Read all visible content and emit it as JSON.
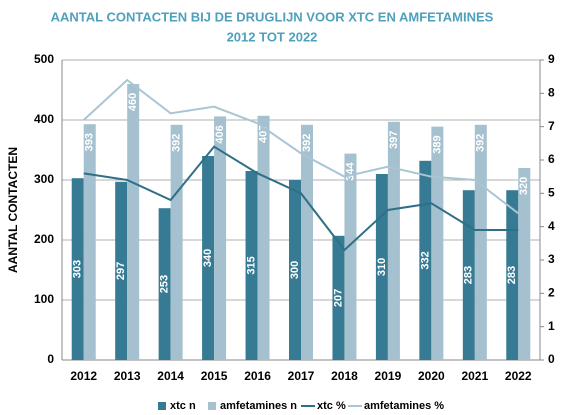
{
  "chart_data": {
    "type": "bar",
    "title": "AANTAL CONTACTEN BIJ DE DRUGLIJN VOOR XTC EN AMFETAMINES",
    "subtitle": "2012 TOT 2022",
    "y_label": "AANTAL CONTACTEN",
    "categories": [
      "2012",
      "2013",
      "2014",
      "2015",
      "2016",
      "2017",
      "2018",
      "2019",
      "2020",
      "2021",
      "2022"
    ],
    "series": [
      {
        "name": "xtc n",
        "type": "bar",
        "color": "#367b93",
        "values": [
          303,
          297,
          253,
          340,
          315,
          300,
          207,
          310,
          332,
          283,
          283
        ]
      },
      {
        "name": "amfetamines n",
        "type": "bar",
        "color": "#a5c0cf",
        "values": [
          393,
          460,
          392,
          406,
          407,
          392,
          344,
          397,
          389,
          392,
          320
        ]
      },
      {
        "name": "xtc %",
        "type": "line",
        "axis": "y2",
        "color": "#2f7088",
        "values": [
          5.6,
          5.4,
          4.8,
          6.4,
          5.6,
          5.0,
          3.3,
          4.5,
          4.7,
          3.9,
          3.9
        ]
      },
      {
        "name": "amfetamines %",
        "type": "line",
        "axis": "y2",
        "color": "#aac5d3",
        "values": [
          7.2,
          8.4,
          7.4,
          7.6,
          7.1,
          6.2,
          5.5,
          5.8,
          5.5,
          5.4,
          4.4
        ]
      }
    ],
    "ylim": [
      0,
      500
    ],
    "yticks": [
      0,
      100,
      200,
      300,
      400,
      500
    ],
    "y2lim": [
      0,
      9
    ],
    "y2ticks": [
      0,
      1,
      2,
      3,
      4,
      5,
      6,
      7,
      8,
      9
    ],
    "grid": true,
    "legend": "bottom"
  }
}
